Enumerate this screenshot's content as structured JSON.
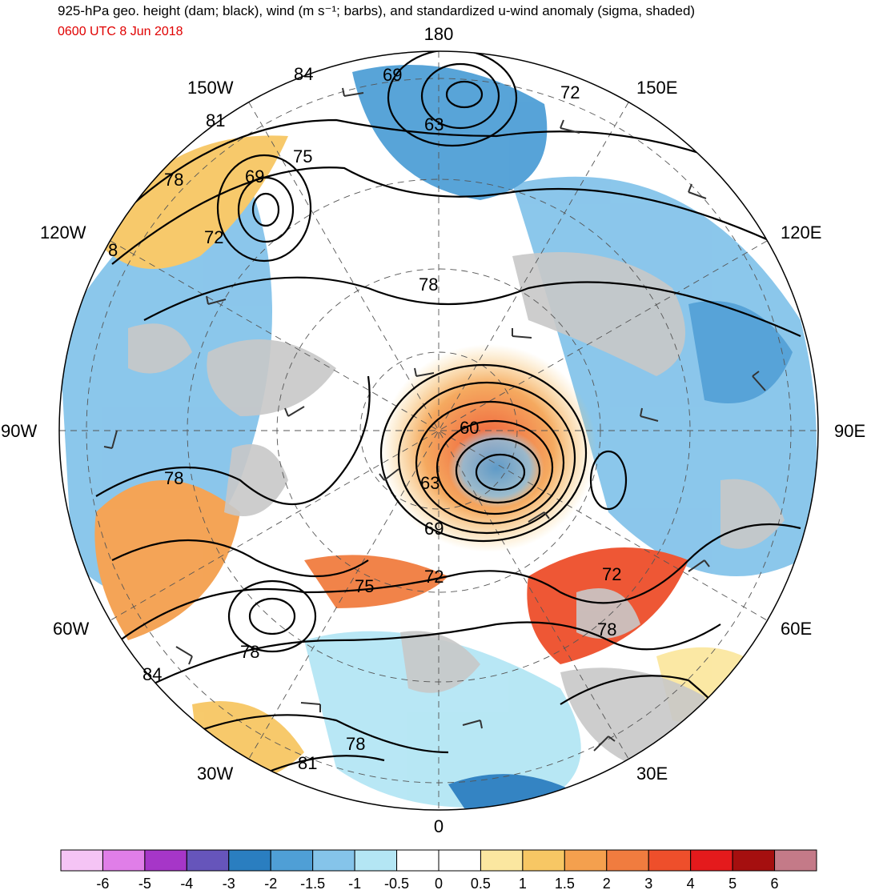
{
  "title": "925-hPa geo. height (dam; black), wind (m s⁻¹; barbs), and standardized u-wind anomaly (sigma, shaded)",
  "subtitle": "0600 UTC 8 Jun 2018",
  "projection": "north polar stereographic",
  "longitude_labels": [
    {
      "text": "180",
      "lon": 180
    },
    {
      "text": "150E",
      "lon": 150
    },
    {
      "text": "120E",
      "lon": 120
    },
    {
      "text": "90E",
      "lon": 90
    },
    {
      "text": "60E",
      "lon": 60
    },
    {
      "text": "30E",
      "lon": 30
    },
    {
      "text": "0",
      "lon": 0
    },
    {
      "text": "30W",
      "lon": -30
    },
    {
      "text": "60W",
      "lon": -60
    },
    {
      "text": "90W",
      "lon": -90
    },
    {
      "text": "120W",
      "lon": -120
    },
    {
      "text": "150W",
      "lon": -150
    }
  ],
  "height_contour_labels": [
    "84",
    "81",
    "78",
    "75",
    "72",
    "69",
    "63",
    "60",
    "63",
    "69",
    "72",
    "75",
    "72",
    "78",
    "78",
    "84",
    "78",
    "81",
    "8",
    "69"
  ],
  "colorbar": {
    "labels": [
      "-6",
      "-5",
      "-4",
      "-3",
      "-2",
      "-1.5",
      "-1",
      "-0.5",
      "0",
      "0.5",
      "1",
      "1.5",
      "2",
      "3",
      "4",
      "5",
      "6"
    ],
    "colors": [
      "#f5c4f5",
      "#e07ee8",
      "#a636c8",
      "#6655bb",
      "#2a7ec0",
      "#4f9fd6",
      "#85c4ea",
      "#b4e6f4",
      "#ffffff",
      "#ffffff",
      "#fbe7a0",
      "#f7c764",
      "#f4a04e",
      "#f07c3f",
      "#ee4f2b",
      "#e41a1c",
      "#a50f0f",
      "#c47a88"
    ]
  },
  "colors": {
    "land_gray": "#c8c8c8",
    "ocean_white": "#ffffff",
    "contour": "#000000",
    "title_red": "#e00000"
  }
}
